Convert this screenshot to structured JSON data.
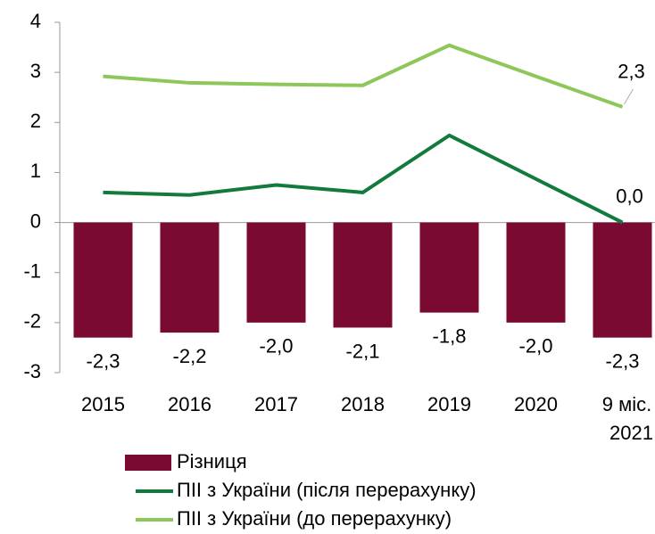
{
  "chart_data": {
    "type": "bar_line",
    "categories": [
      "2015",
      "2016",
      "2017",
      "2018",
      "2019",
      "2020",
      "9 міс. 2021"
    ],
    "series": [
      {
        "name": "Різниця",
        "type": "bar",
        "color": "#7b0a32",
        "values": [
          -2.3,
          -2.2,
          -2.0,
          -2.1,
          -1.8,
          -2.0,
          -2.3
        ],
        "value_labels": [
          "-2,3",
          "-2,2",
          "-2,0",
          "-2,1",
          "-1,8",
          "-2,0",
          "-2,3"
        ]
      },
      {
        "name": "ПІІ з України (після перерахунку)",
        "type": "line",
        "color": "#127a3c",
        "values": [
          0.6,
          0.55,
          0.75,
          0.6,
          1.74,
          0.87,
          0.0
        ],
        "value_labels": [
          null,
          null,
          null,
          null,
          null,
          null,
          "0,0"
        ]
      },
      {
        "name": "ПІІ з України (до перерахунку)",
        "type": "line",
        "color": "#8dc75a",
        "values": [
          2.92,
          2.79,
          2.76,
          2.74,
          3.54,
          2.92,
          2.31
        ],
        "value_labels": [
          null,
          null,
          null,
          null,
          null,
          null,
          "2,3"
        ]
      }
    ],
    "ylim": [
      -3,
      4
    ],
    "yticks": [
      -3,
      -2,
      -1,
      0,
      1,
      2,
      3,
      4
    ],
    "grid": false
  }
}
